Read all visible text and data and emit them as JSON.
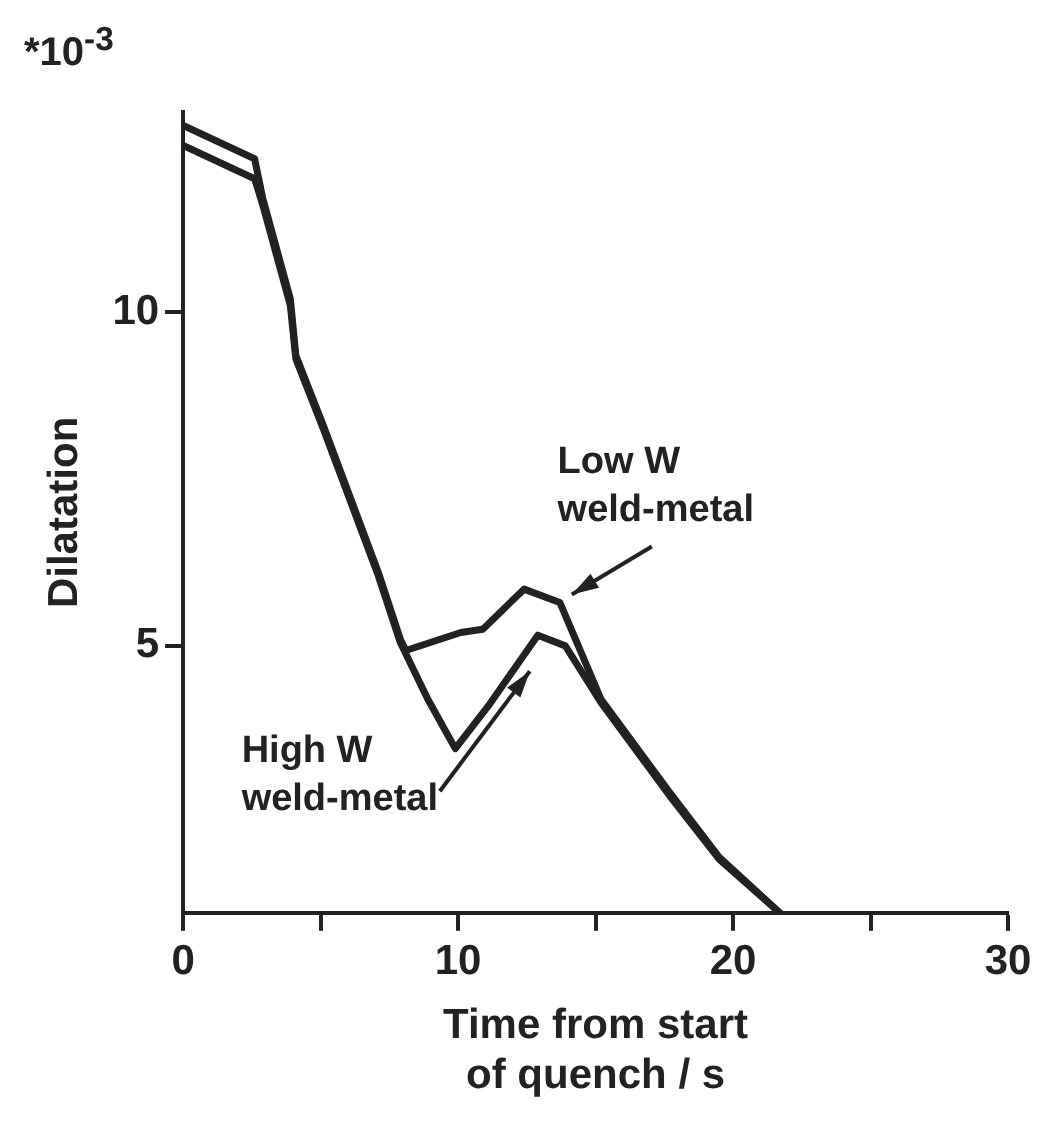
{
  "chart_data": {
    "type": "line",
    "xlabel": "Time from start of quench / s",
    "ylabel": "Dilatation",
    "annotations": [
      "*10$^{-3}$"
    ],
    "xlim": [
      0,
      30
    ],
    "xticks": [
      0,
      {
        "value": 5,
        "label": null
      },
      10,
      {
        "value": 15,
        "label": null
      },
      20,
      {
        "value": 25,
        "label": null
      },
      30
    ],
    "ylim": [
      1,
      13
    ],
    "yticks": [
      5,
      10
    ],
    "grid": false,
    "legend": false,
    "marker": "none",
    "line_style": "solid",
    "series": [
      {
        "name": "Low W weld-metal",
        "color": "#222222",
        "x": [
          0,
          2.6,
          2.9,
          3.9,
          4.1,
          5.1,
          6.1,
          7.1,
          7.9,
          8.1,
          10.1,
          10.9,
          12.4,
          13.7,
          15.2,
          17.7,
          19.5,
          21.7
        ],
        "values": [
          12.8,
          12.3,
          11.7,
          10.2,
          9.35,
          8.3,
          7.2,
          6.1,
          5.1,
          4.93,
          5.2,
          5.25,
          5.85,
          5.65,
          4.2,
          2.8,
          1.83,
          1.0
        ]
      },
      {
        "name": "High W weld-metal",
        "color": "#222222",
        "x": [
          0,
          2.6,
          2.9,
          3.9,
          4.1,
          5.1,
          6.1,
          7.1,
          7.9,
          8.9,
          9.9,
          11.1,
          12.9,
          13.9,
          15.2,
          17.7,
          19.5,
          21.7
        ],
        "values": [
          12.5,
          12.0,
          11.6,
          10.1,
          9.3,
          8.25,
          7.15,
          6.05,
          5.05,
          4.2,
          3.46,
          4.1,
          5.16,
          5.0,
          4.15,
          2.75,
          1.8,
          1.0
        ]
      }
    ]
  }
}
